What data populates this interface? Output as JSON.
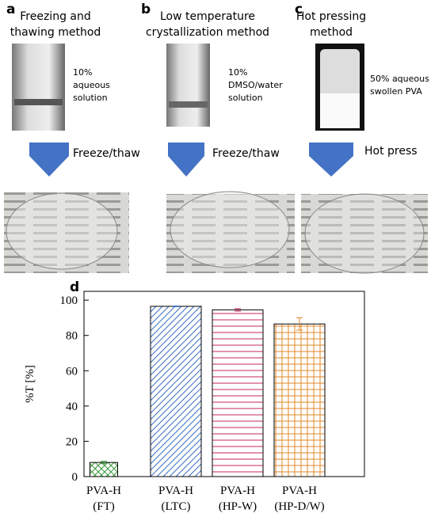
{
  "panels": [
    {
      "label": "a",
      "title": [
        "Freezing and",
        "thawing method"
      ],
      "note": [
        "10%",
        "aqueous",
        "solution"
      ],
      "step": "Freeze/thaw"
    },
    {
      "label": "b",
      "title": [
        "Low temperature",
        "crystallization method"
      ],
      "note": [
        "10%",
        "DMSO/water",
        "solution"
      ],
      "step": "Freeze/thaw"
    },
    {
      "label": "c",
      "title": [
        "Hot pressing",
        "method"
      ],
      "note": [
        "50% aqueous",
        "swollen PVA"
      ],
      "step": "Hot press"
    }
  ],
  "chart_data": {
    "type": "bar",
    "label": "d",
    "ylabel": "%T [%]",
    "categories": [
      [
        "PVA-H",
        "(FT)"
      ],
      [
        "PVA-H",
        "(LTC)"
      ],
      [
        "PVA-H",
        "(HP-W)"
      ],
      [
        "PVA-H",
        "(HP-D/W)"
      ]
    ],
    "values": [
      8,
      96.5,
      94.5,
      86.5
    ],
    "errors": [
      0.7,
      0.2,
      0.7,
      3.5
    ],
    "colors": [
      "#3a9a3a",
      "#3a6fc4",
      "#c8245a",
      "#e08a2a"
    ],
    "patterns": [
      "cross",
      "diagonal",
      "horizontal",
      "grid"
    ],
    "ylim": [
      0,
      105
    ],
    "yticks": [
      0,
      20,
      40,
      60,
      80,
      100
    ]
  }
}
